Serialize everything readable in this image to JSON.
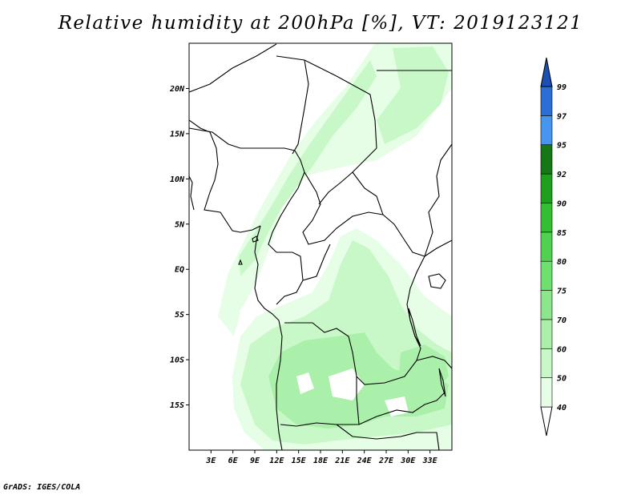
{
  "title": "Relative humidity at 200hPa [%], VT: 2019123121",
  "credit": "GrADS: IGES/COLA",
  "map": {
    "lat_range": [
      -20,
      25
    ],
    "lon_range": [
      0,
      36
    ],
    "lat_ticks": [
      {
        "lat": 20,
        "label": "20N"
      },
      {
        "lat": 15,
        "label": "15N"
      },
      {
        "lat": 10,
        "label": "10N"
      },
      {
        "lat": 5,
        "label": "5N"
      },
      {
        "lat": 0,
        "label": "EQ"
      },
      {
        "lat": -5,
        "label": "5S"
      },
      {
        "lat": -10,
        "label": "10S"
      },
      {
        "lat": -15,
        "label": "15S"
      }
    ],
    "lon_ticks": [
      {
        "lon": 3,
        "label": "3E"
      },
      {
        "lon": 6,
        "label": "6E"
      },
      {
        "lon": 9,
        "label": "9E"
      },
      {
        "lon": 12,
        "label": "12E"
      },
      {
        "lon": 15,
        "label": "15E"
      },
      {
        "lon": 18,
        "label": "18E"
      },
      {
        "lon": 21,
        "label": "21E"
      },
      {
        "lon": 24,
        "label": "24E"
      },
      {
        "lon": 27,
        "label": "27E"
      },
      {
        "lon": 30,
        "label": "30E"
      },
      {
        "lon": 33,
        "label": "33E"
      }
    ]
  },
  "colorbar": {
    "levels": [
      "40",
      "50",
      "60",
      "70",
      "75",
      "80",
      "85",
      "90",
      "92",
      "95",
      "97",
      "99"
    ],
    "colors": [
      "#ffffff",
      "#e6fee6",
      "#c8f8c8",
      "#aaf0aa",
      "#8ce68c",
      "#6ee06e",
      "#50d250",
      "#32c032",
      "#1ea01e",
      "#147814",
      "#4696f0",
      "#2a6ed6",
      "#1a4fb4"
    ]
  },
  "shading_colors": {
    "rh50": "#e6fee6",
    "rh60": "#c8f8c8",
    "rh70": "#aaf0aa"
  }
}
